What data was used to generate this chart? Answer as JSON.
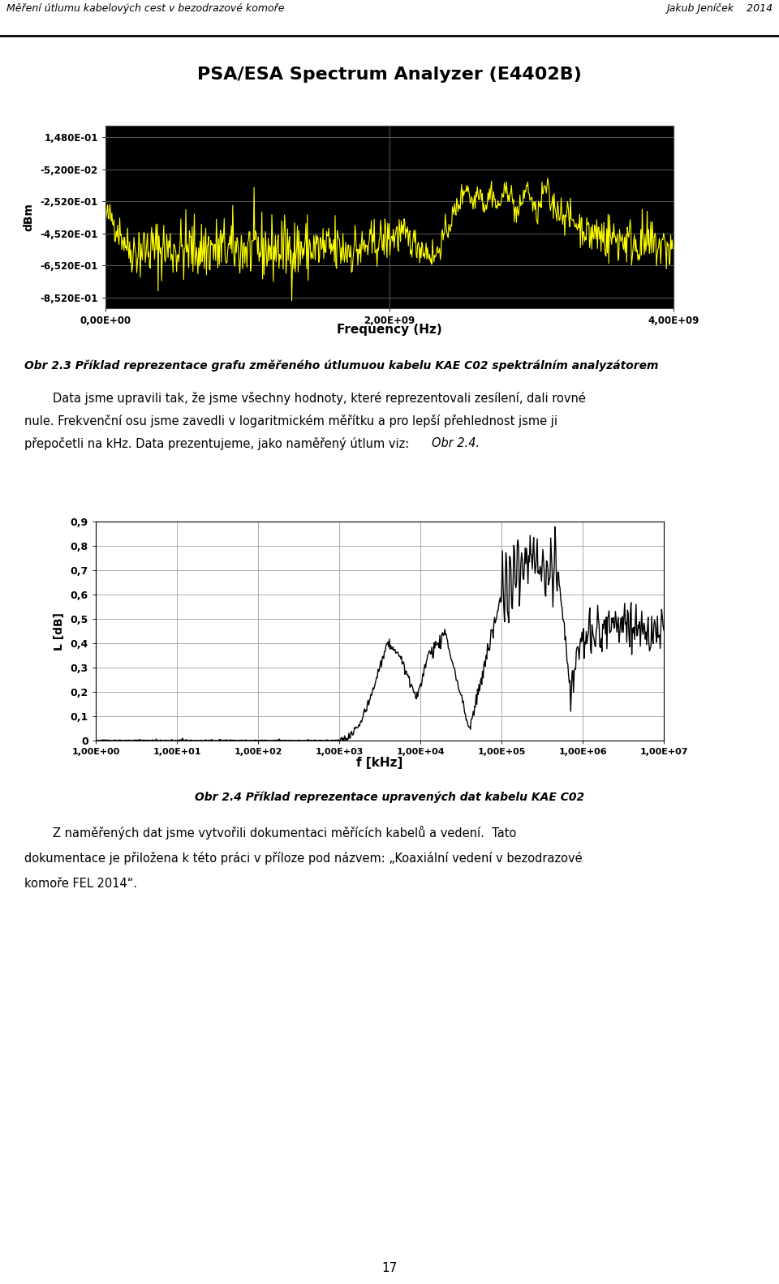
{
  "header_left": "Měření útlumu kabelových cest v bezodrazové komoře",
  "header_right": "Jakub Jeníček    2014",
  "chart1_title": "PSA/ESA Spectrum Analyzer (E4402B)",
  "chart1_ylabel": "dBm",
  "chart1_xlabel": "Frequency (Hz)",
  "chart1_yticks": [
    0.148,
    -0.052,
    -0.252,
    -0.452,
    -0.652,
    -0.852
  ],
  "chart1_ytick_labels": [
    "1,480E-01",
    "-5,200E-02",
    "-2,520E-01",
    "-4,520E-01",
    "-6,520E-01",
    "-8,520E-01"
  ],
  "chart1_xticks": [
    0,
    2000000000,
    4000000000
  ],
  "chart1_xtick_labels": [
    "0,00E+00",
    "2,00E+09",
    "4,00E+09"
  ],
  "chart1_xlim": [
    0,
    4000000000
  ],
  "chart1_ylim": [
    -0.92,
    0.22
  ],
  "chart1_bg": "#000000",
  "chart1_line_color": "#ffff00",
  "obr23_line": "Obr 2.3 Příklad reprezentace grafu změřeného útlumuou kabelu KAE C02 spektrálním analyzátorem",
  "para_indent": "    Data jsme upravili tak, že jsme všechny hodnoty, které reprezentovali zesílení, dali rovné",
  "para2": "nule. Frekvenční osu jsme zavedli v logaritmickém měřítku a pro lepší přehlednost jsme ji",
  "para3": "přepočetli na kHz. Data prezentujeme, jako naměřený útlum viz: ",
  "para3_italic": "Obr 2.4.",
  "chart2_ylabel": "L [dB]",
  "chart2_xlabel": "f [kHz]",
  "chart2_ytick_labels": [
    "0",
    "0,1",
    "0,2",
    "0,3",
    "0,4",
    "0,5",
    "0,6",
    "0,7",
    "0,8",
    "0,9"
  ],
  "chart2_yticks": [
    0,
    0.1,
    0.2,
    0.3,
    0.4,
    0.5,
    0.6,
    0.7,
    0.8,
    0.9
  ],
  "chart2_xtick_labels": [
    "1,00E+00",
    "1,00E+01",
    "1,00E+02",
    "1,00E+03",
    "1,00E+04",
    "1,00E+05",
    "1,00E+06",
    "1,00E+07"
  ],
  "chart2_xticks": [
    1,
    10,
    100,
    1000,
    10000,
    100000,
    1000000,
    10000000
  ],
  "chart2_xlim": [
    1,
    10000000
  ],
  "chart2_ylim": [
    0,
    0.9
  ],
  "chart2_bg": "#ffffff",
  "chart2_line_color": "#000000",
  "obr24_line": "Obr 2.4 Příklad reprezentace upravených dat kabelu KAE C02",
  "final_line1a": "    Z naměřených dat jsme vytvořili dokumentaci měřících kabelů a vedení.",
  "final_line1b": " Tato",
  "final_line2": "dokumentace je přiložena k této práci v příloze pod názvem: „Koaxiální vedení v bezodrazové",
  "final_line3": "komoře FEL 2014“.",
  "page_number": "17"
}
